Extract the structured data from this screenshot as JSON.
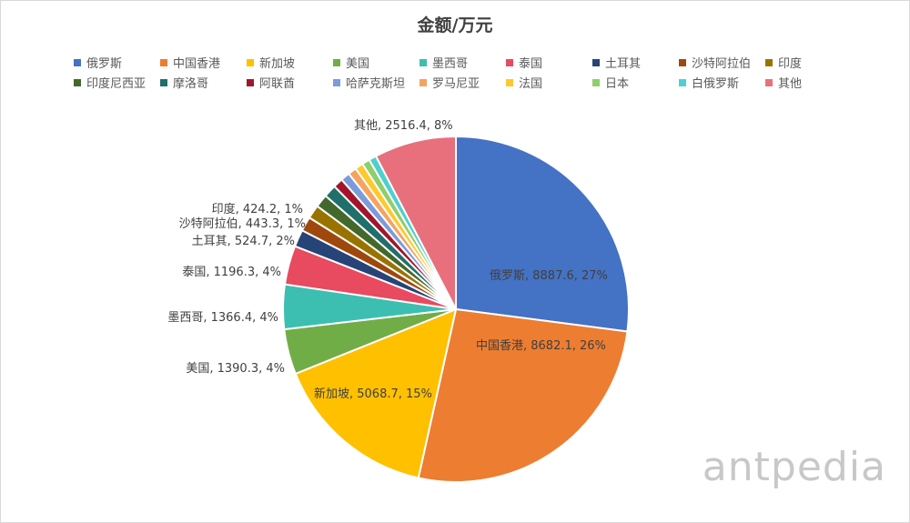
{
  "chart_data": {
    "type": "pie",
    "title": "金额/万元",
    "legend_placement": "top",
    "categories": [
      "俄罗斯",
      "中国香港",
      "新加坡",
      "美国",
      "墨西哥",
      "泰国",
      "土耳其",
      "沙特阿拉伯",
      "印度",
      "印度尼西亚",
      "摩洛哥",
      "阿联酋",
      "哈萨克斯坦",
      "罗马尼亚",
      "法国",
      "日本",
      "白俄罗斯",
      "其他"
    ],
    "values": [
      8887.6,
      8682.1,
      5068.7,
      1390.3,
      1366.4,
      1196.3,
      524.7,
      443.3,
      424.2,
      400,
      390,
      300,
      280,
      260,
      250,
      240,
      230,
      2516.4
    ],
    "colors": [
      "#4472c4",
      "#ed7d31",
      "#ffc000",
      "#70ad47",
      "#3cbfb0",
      "#e84a5f",
      "#264478",
      "#9e480e",
      "#997300",
      "#43682b",
      "#1f6f6b",
      "#a1162b",
      "#7b9bd9",
      "#f4a460",
      "#ffc82c",
      "#8fce6a",
      "#4dd0cf",
      "#e8707d"
    ],
    "data_labels": [
      "俄罗斯, 8887.6, 27%",
      "中国香港, 8682.1, 26%",
      "新加坡, 5068.7, 15%",
      "美国, 1390.3, 4%",
      "墨西哥, 1366.4, 4%",
      "泰国, 1196.3, 4%",
      "土耳其, 524.7, 2%",
      "沙特阿拉伯, 443.3, 1%",
      "印度, 424.2, 1%",
      "",
      "",
      "",
      "",
      "",
      "",
      "",
      "",
      "其他, 2516.4, 8%"
    ]
  },
  "watermark": "antpedia"
}
